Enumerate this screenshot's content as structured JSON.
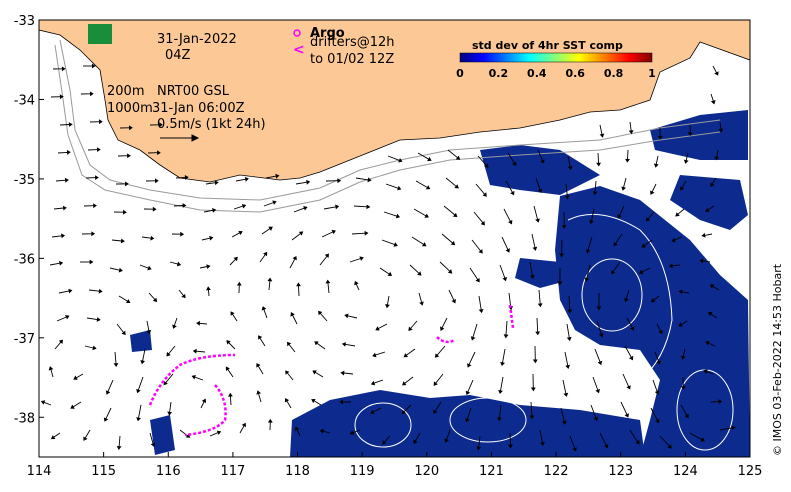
{
  "map": {
    "date": "31-Jan-2022",
    "time": "04Z",
    "argo_label": "Argo",
    "drifters_label": "drifters@12h",
    "drifters_until": "to 01/02 12Z",
    "isobath_200": "200m",
    "isobath_1000": "1000m",
    "model_label": "NRT00 GSL",
    "model_time": "31-Jan 06:00Z",
    "scale_label": "0.5m/s (1kt 24h)",
    "colorbar_title": "std dev of 4hr SST comp",
    "colorbar_ticks": [
      "0",
      "0.2",
      "0.4",
      "0.6",
      "0.8",
      "1"
    ],
    "credit": "© IMOS 03-Feb-2022 14:53 Hobart",
    "x_ticks": [
      "114",
      "115",
      "116",
      "117",
      "118",
      "119",
      "120",
      "121",
      "122",
      "123",
      "124",
      "125"
    ],
    "y_ticks": [
      "-33",
      "-34",
      "-35",
      "-36",
      "-37",
      "-38"
    ],
    "lon_range": [
      114,
      125
    ],
    "lat_range": [
      -38.5,
      -33
    ],
    "colors": {
      "land": "#fcc896",
      "sst_patch": "#0d2a8f",
      "drifter": "#ff00ff",
      "argo": "#ff00ff",
      "arrow": "#000000",
      "isobath": "#9a9a9a"
    }
  }
}
